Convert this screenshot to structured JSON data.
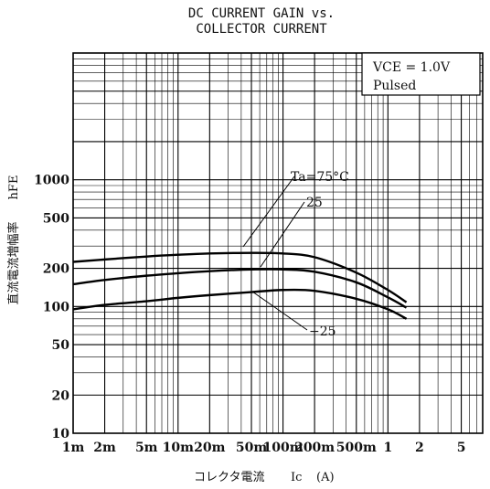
{
  "chart_data": {
    "type": "line",
    "title_line1": "DC CURRENT GAIN vs.",
    "title_line2": "COLLECTOR CURRENT",
    "xlabel_prefix": "コレクタ電流",
    "xlabel_symbol": "Ic",
    "xlabel_unit": "(A)",
    "ylabel_text": "直流電流増幅率",
    "ylabel_symbol": "hFE",
    "x_scale": "log",
    "y_scale": "log",
    "xlim": [
      0.001,
      8
    ],
    "ylim": [
      10,
      10000
    ],
    "grid": true,
    "x_ticks": [
      {
        "v": 0.001,
        "label": "1m"
      },
      {
        "v": 0.002,
        "label": "2m"
      },
      {
        "v": 0.005,
        "label": "5m"
      },
      {
        "v": 0.01,
        "label": "10m"
      },
      {
        "v": 0.02,
        "label": "20m"
      },
      {
        "v": 0.05,
        "label": "50m"
      },
      {
        "v": 0.1,
        "label": "100m"
      },
      {
        "v": 0.2,
        "label": "200m"
      },
      {
        "v": 0.5,
        "label": "500m"
      },
      {
        "v": 1,
        "label": "1"
      },
      {
        "v": 2,
        "label": "2"
      },
      {
        "v": 5,
        "label": "5"
      }
    ],
    "y_ticks": [
      {
        "v": 10,
        "label": "10"
      },
      {
        "v": 20,
        "label": "20"
      },
      {
        "v": 50,
        "label": "50"
      },
      {
        "v": 100,
        "label": "100"
      },
      {
        "v": 200,
        "label": "200"
      },
      {
        "v": 500,
        "label": "500"
      },
      {
        "v": 1000,
        "label": "1000"
      }
    ],
    "legend_box": {
      "line1": "VCE = 1.0V",
      "line2": "Pulsed"
    },
    "series": [
      {
        "name": "Ta=75°C",
        "x": [
          0.001,
          0.002,
          0.005,
          0.01,
          0.02,
          0.05,
          0.1,
          0.2,
          0.5,
          1,
          1.5
        ],
        "y": [
          225,
          235,
          248,
          256,
          262,
          265,
          262,
          245,
          185,
          135,
          108
        ]
      },
      {
        "name": "25",
        "x": [
          0.001,
          0.002,
          0.005,
          0.01,
          0.02,
          0.05,
          0.1,
          0.2,
          0.5,
          1,
          1.5
        ],
        "y": [
          150,
          162,
          175,
          183,
          190,
          196,
          196,
          188,
          155,
          118,
          98
        ]
      },
      {
        "name": "-25",
        "x": [
          0.001,
          0.002,
          0.005,
          0.01,
          0.02,
          0.05,
          0.1,
          0.2,
          0.5,
          1,
          1.5
        ],
        "y": [
          95,
          103,
          110,
          117,
          123,
          130,
          135,
          133,
          115,
          95,
          80
        ]
      }
    ],
    "annotations": [
      {
        "text": "Ta=75°C",
        "x": 0.045,
        "y": 265
      },
      {
        "text": "25",
        "x": 0.06,
        "y": 196
      },
      {
        "text": "−25",
        "x": 0.05,
        "y": 128
      }
    ]
  }
}
